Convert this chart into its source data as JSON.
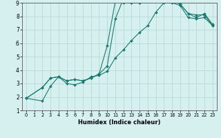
{
  "xlabel": "Humidex (Indice chaleur)",
  "bg_color": "#d6efef",
  "line_color": "#1a7a6e",
  "grid_color": "#b8d8d8",
  "xlim": [
    -0.5,
    23.5
  ],
  "ylim": [
    1,
    9
  ],
  "xticks": [
    0,
    1,
    2,
    3,
    4,
    5,
    6,
    7,
    8,
    9,
    10,
    11,
    12,
    13,
    14,
    15,
    16,
    17,
    18,
    19,
    20,
    21,
    22,
    23
  ],
  "yticks": [
    1,
    2,
    3,
    4,
    5,
    6,
    7,
    8,
    9
  ],
  "series": [
    {
      "x": [
        0,
        2,
        3,
        4,
        5,
        6,
        7,
        8,
        9,
        10,
        11,
        12,
        13,
        14,
        15,
        16,
        17,
        18,
        19,
        20,
        21,
        22,
        23
      ],
      "y": [
        1.9,
        1.7,
        2.8,
        3.5,
        3.0,
        2.9,
        3.1,
        3.5,
        3.6,
        3.9,
        4.9,
        5.5,
        6.2,
        6.8,
        7.3,
        8.3,
        9.0,
        9.0,
        8.8,
        7.9,
        7.8,
        7.9,
        7.3
      ]
    },
    {
      "x": [
        0,
        2,
        3,
        4,
        5,
        6,
        7,
        8,
        9,
        10,
        11,
        12,
        13,
        14,
        15,
        16,
        17,
        18,
        19,
        20,
        21,
        22,
        23
      ],
      "y": [
        1.9,
        2.7,
        3.4,
        3.5,
        3.2,
        3.3,
        3.2,
        3.4,
        3.7,
        5.8,
        9.1,
        9.0,
        9.0,
        9.0,
        9.1,
        9.2,
        9.2,
        9.2,
        8.9,
        8.2,
        8.1,
        8.1,
        7.3
      ]
    },
    {
      "x": [
        0,
        2,
        3,
        4,
        5,
        6,
        7,
        8,
        9,
        10,
        11,
        12,
        13,
        14,
        15,
        16,
        17,
        18,
        19,
        20,
        21,
        22,
        23
      ],
      "y": [
        1.9,
        2.7,
        3.4,
        3.5,
        3.2,
        3.3,
        3.2,
        3.4,
        3.7,
        4.3,
        7.8,
        9.3,
        9.0,
        9.0,
        9.1,
        9.3,
        9.3,
        9.3,
        8.9,
        8.2,
        7.9,
        8.2,
        7.4
      ]
    }
  ]
}
